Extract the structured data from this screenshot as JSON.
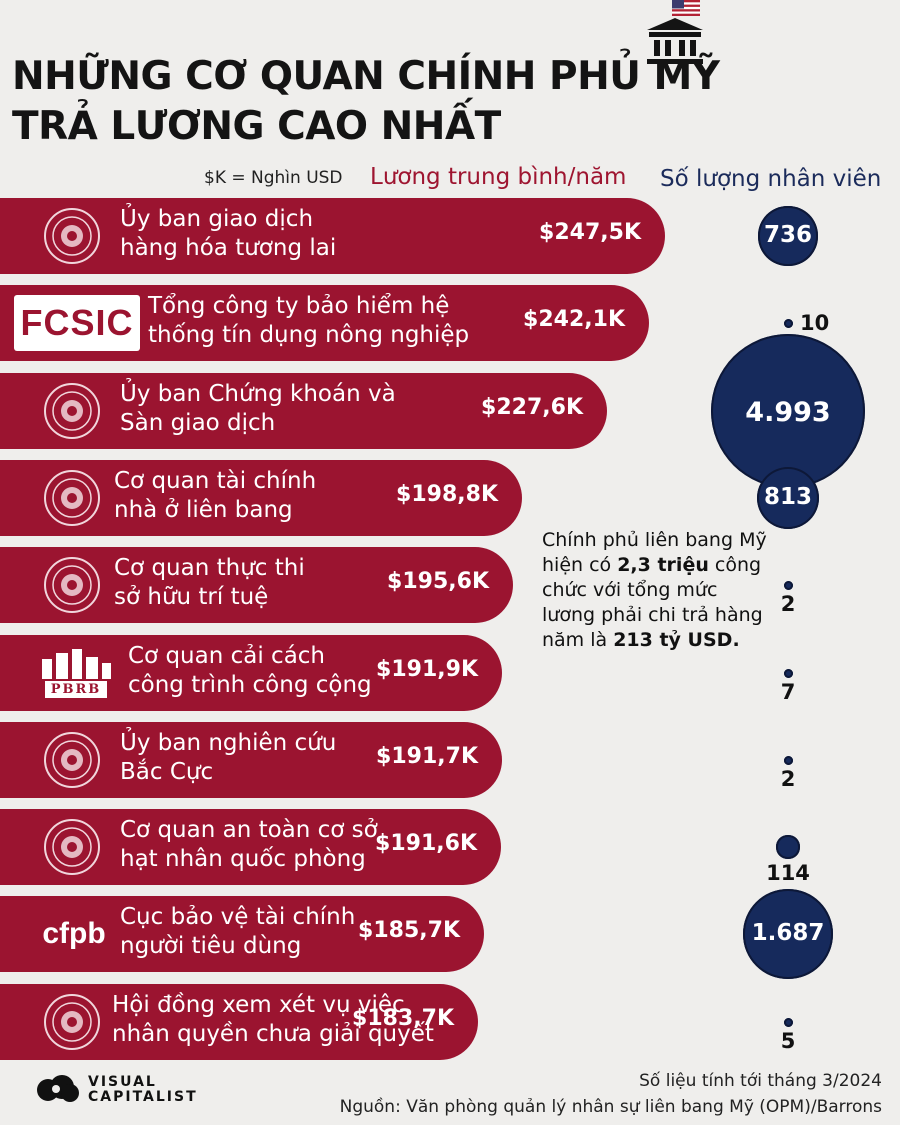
{
  "header": {
    "title_line1": "NHỮNG CƠ QUAN CHÍNH PHỦ MỸ",
    "title_line2": "TRẢ LƯƠNG CAO NHẤT"
  },
  "legend": {
    "unit_note": "$K = Nghìn USD",
    "salary_label": "Lương trung bình/năm",
    "count_label": "Số lượng nhân viên"
  },
  "colors": {
    "bar": "#9b1430",
    "bubble": "#162a5c",
    "background": "#efeeec"
  },
  "chart_data": {
    "type": "bar",
    "orientation": "horizontal",
    "unit": "$K",
    "series": [
      {
        "name": "Lương trung bình/năm",
        "values": [
          247.5,
          242.1,
          227.6,
          198.8,
          195.6,
          191.9,
          191.7,
          191.6,
          185.7,
          183.7
        ]
      },
      {
        "name": "Số lượng nhân viên",
        "values": [
          736,
          10,
          4993,
          813,
          2,
          7,
          2,
          114,
          1687,
          5
        ]
      }
    ],
    "rows": [
      {
        "name_line1": "Ủy ban giao dịch",
        "name_line2": "hàng hóa tương lai",
        "salary": 247.5,
        "salary_label": "$247,5K",
        "employees": 736,
        "employees_label": "736",
        "logo": "seal-icon",
        "logo_text": ""
      },
      {
        "name_line1": "Tổng công ty bảo hiểm hệ",
        "name_line2": "thống tín dụng nông nghiệp",
        "salary": 242.1,
        "salary_label": "$242,1K",
        "employees": 10,
        "employees_label": "10",
        "logo": "fcsic-logo",
        "logo_text": "FCSIC"
      },
      {
        "name_line1": "Ủy ban Chứng khoán và",
        "name_line2": "Sàn giao dịch",
        "salary": 227.6,
        "salary_label": "$227,6K",
        "employees": 4993,
        "employees_label": "4.993",
        "logo": "eagle-seal-icon",
        "logo_text": ""
      },
      {
        "name_line1": "Cơ quan tài chính",
        "name_line2": "nhà ở liên bang",
        "salary": 198.8,
        "salary_label": "$198,8K",
        "employees": 813,
        "employees_label": "813",
        "logo": "house-seal-icon",
        "logo_text": ""
      },
      {
        "name_line1": "Cơ quan thực thi",
        "name_line2": "sở hữu trí tuệ",
        "salary": 195.6,
        "salary_label": "$195,6K",
        "employees": 2,
        "employees_label": "2",
        "logo": "eagle-seal-icon",
        "logo_text": ""
      },
      {
        "name_line1": "Cơ quan cải cách",
        "name_line2": "công trình công cộng",
        "salary": 191.9,
        "salary_label": "$191,9K",
        "employees": 7,
        "employees_label": "7",
        "logo": "pbrb-logo",
        "logo_text": "PBRB"
      },
      {
        "name_line1": "Ủy ban nghiên cứu",
        "name_line2": "Bắc Cực",
        "salary": 191.7,
        "salary_label": "$191,7K",
        "employees": 2,
        "employees_label": "2",
        "logo": "globe-seal-icon",
        "logo_text": ""
      },
      {
        "name_line1": "Cơ quan an toàn cơ sở",
        "name_line2": "hạt nhân quốc phòng",
        "salary": 191.6,
        "salary_label": "$191,6K",
        "employees": 114,
        "employees_label": "114",
        "logo": "atom-seal-icon",
        "logo_text": ""
      },
      {
        "name_line1": "Cục bảo vệ tài chính",
        "name_line2": "người tiêu dùng",
        "salary": 185.7,
        "salary_label": "$185,7K",
        "employees": 1687,
        "employees_label": "1.687",
        "logo": "cfpb-logo",
        "logo_text": "cfpb"
      },
      {
        "name_line1": "Hội đồng xem xét vụ việc",
        "name_line2": "nhân quyền chưa giải quyết",
        "salary": 183.7,
        "salary_label": "$183,7K",
        "employees": 5,
        "employees_label": "5",
        "logo": "tree-seal-icon",
        "logo_text": ""
      }
    ]
  },
  "note": {
    "part1": "Chính phủ liên bang Mỹ hiện có ",
    "bold1": "2,3 triệu",
    "part2": " công chức với tổng mức lương phải chi trả hàng năm là ",
    "bold2": "213 tỷ USD."
  },
  "footer": {
    "date_note": "Số liệu tính tới tháng 3/2024",
    "source": "Nguồn: Văn phòng quản lý nhân sự liên bang Mỹ (OPM)/Barrons",
    "brand_line1": "VISUAL",
    "brand_line2": "CAPITALIST"
  }
}
